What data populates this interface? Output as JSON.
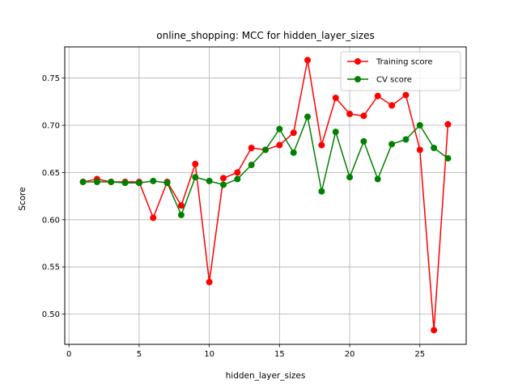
{
  "chart_data": {
    "type": "line",
    "title": "online_shopping: MCC for hidden_layer_sizes",
    "xlabel": "hidden_layer_sizes",
    "ylabel": "Score",
    "xlim": [
      -0.3,
      28.3
    ],
    "ylim": [
      0.468,
      0.783
    ],
    "xticks": [
      0,
      5,
      10,
      15,
      20,
      25
    ],
    "yticks": [
      0.5,
      0.55,
      0.6,
      0.65,
      0.7,
      0.75
    ],
    "ytick_labels": [
      "0.50",
      "0.55",
      "0.60",
      "0.65",
      "0.70",
      "0.75"
    ],
    "grid": true,
    "legend_position": "top-right",
    "x": [
      1,
      2,
      3,
      4,
      5,
      6,
      7,
      8,
      9,
      10,
      11,
      12,
      13,
      14,
      15,
      16,
      17,
      18,
      19,
      20,
      21,
      22,
      23,
      24,
      25,
      26,
      27
    ],
    "series": [
      {
        "name": "Training score",
        "color": "#ff0000",
        "values": [
          0.64,
          0.643,
          0.64,
          0.64,
          0.64,
          0.602,
          0.64,
          0.615,
          0.659,
          0.534,
          0.644,
          0.65,
          0.676,
          0.674,
          0.679,
          0.692,
          0.769,
          0.679,
          0.729,
          0.712,
          0.71,
          0.731,
          0.721,
          0.732,
          0.674,
          0.483,
          0.701
        ]
      },
      {
        "name": "CV score",
        "color": "#008000",
        "values": [
          0.64,
          0.64,
          0.64,
          0.639,
          0.639,
          0.641,
          0.639,
          0.605,
          0.645,
          0.641,
          0.637,
          0.643,
          0.658,
          0.674,
          0.696,
          0.671,
          0.709,
          0.63,
          0.693,
          0.645,
          0.683,
          0.643,
          0.68,
          0.685,
          0.7,
          0.676,
          0.665
        ]
      }
    ]
  }
}
